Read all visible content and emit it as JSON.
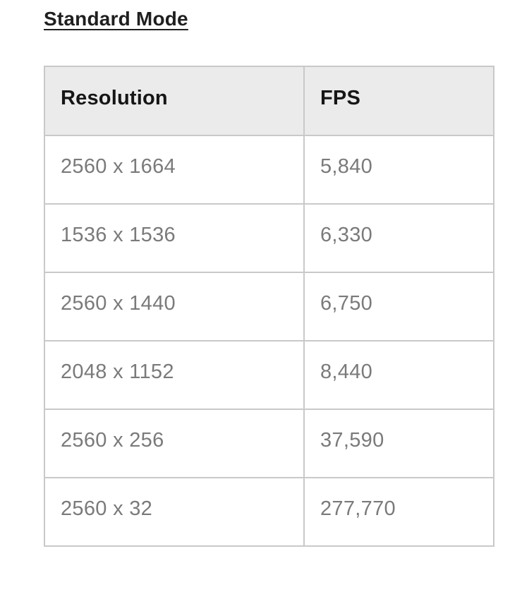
{
  "section": {
    "title": "Standard Mode"
  },
  "table": {
    "columns": [
      "Resolution",
      "FPS"
    ],
    "rows": [
      {
        "resolution": "2560 x 1664",
        "fps": "5,840"
      },
      {
        "resolution": "1536 x 1536",
        "fps": "6,330"
      },
      {
        "resolution": "2560 x 1440",
        "fps": "6,750"
      },
      {
        "resolution": "2048 x 1152",
        "fps": "8,440"
      },
      {
        "resolution": "2560 x 256",
        "fps": "37,590"
      },
      {
        "resolution": "2560 x 32",
        "fps": "277,770"
      }
    ]
  },
  "chart_data": {
    "type": "table",
    "title": "Standard Mode",
    "columns": [
      "Resolution",
      "FPS"
    ],
    "rows": [
      [
        "2560 x 1664",
        "5,840"
      ],
      [
        "1536 x 1536",
        "6,330"
      ],
      [
        "2560 x 1440",
        "6,750"
      ],
      [
        "2048 x 1152",
        "8,440"
      ],
      [
        "2560 x 256",
        "37,590"
      ],
      [
        "2560 x 32",
        "277,770"
      ]
    ],
    "fps_numeric": [
      5840,
      6330,
      6750,
      8440,
      37590,
      277770
    ]
  },
  "colors": {
    "page_bg": "#ffffff",
    "header_bg": "#ebebeb",
    "border": "#c9c9c9",
    "header_text": "#161616",
    "body_text": "#7a7a7a",
    "heading_text": "#1f1f1f"
  }
}
